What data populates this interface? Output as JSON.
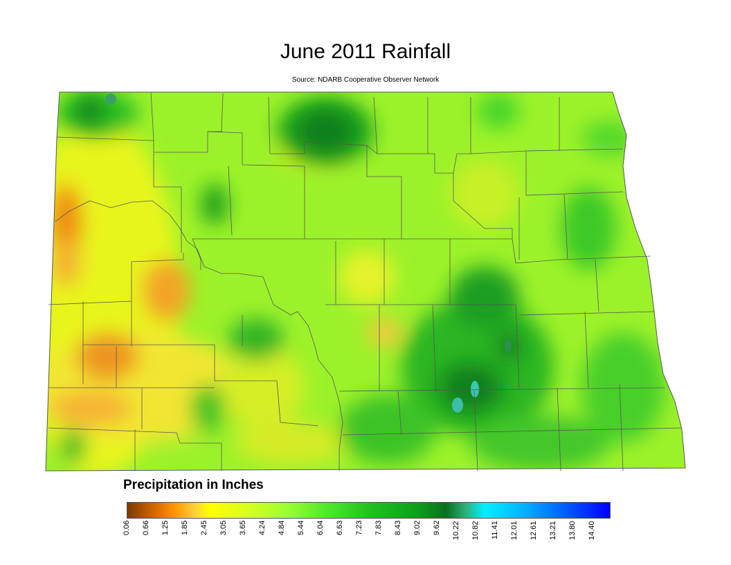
{
  "title": "June 2011 Rainfall",
  "subtitle": "Source: NDARB Cooperative Observer Network",
  "legend": {
    "title": "Precipitation in Inches",
    "ticks": [
      "0.06",
      "0.66",
      "1.25",
      "1.85",
      "2.45",
      "3.05",
      "3.65",
      "4.24",
      "4.84",
      "5.44",
      "6.04",
      "6.63",
      "7.23",
      "7.83",
      "8.43",
      "9.02",
      "9.62",
      "10.22",
      "10.82",
      "11.41",
      "12.01",
      "12.61",
      "13.21",
      "13.80",
      "14.40"
    ],
    "colors": {
      "low": "#7a3a00",
      "orange": "#ff9a00",
      "yellow": "#ffff00",
      "green": "#1fc31f",
      "dark_green": "#0a6f1e",
      "cyan": "#00f0ff",
      "high": "#0000ff"
    }
  },
  "map": {
    "region": "North Dakota",
    "boundary_color": "#555555"
  }
}
